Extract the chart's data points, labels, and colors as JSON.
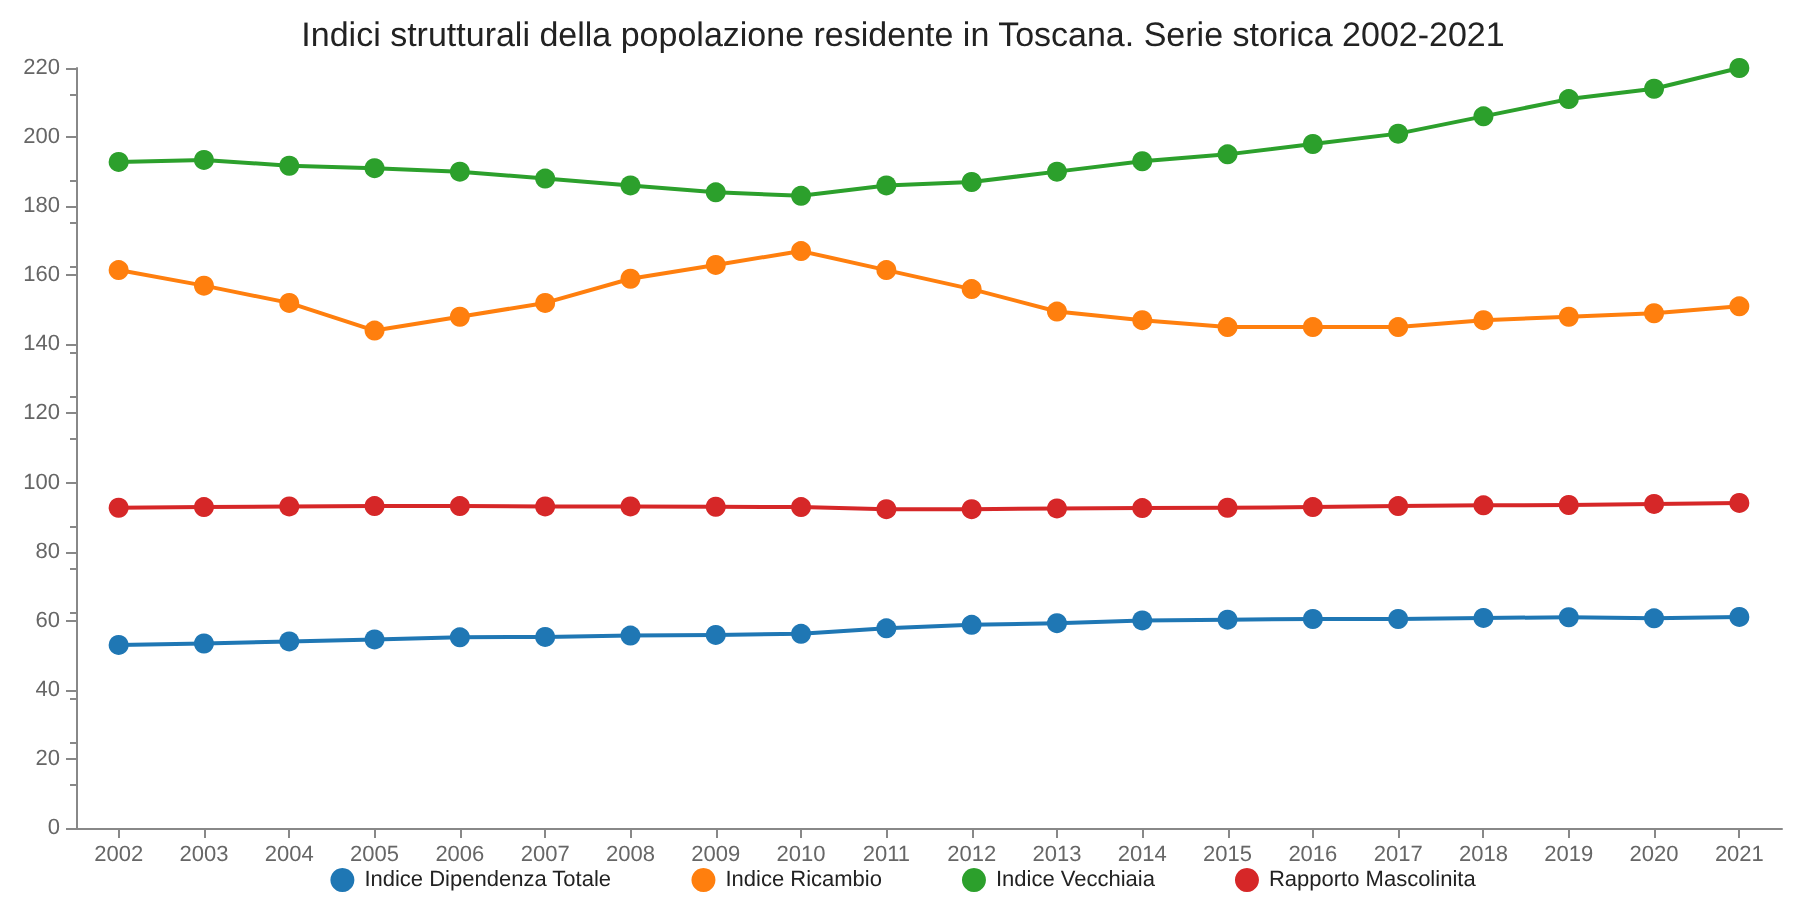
{
  "chart_data": {
    "type": "line",
    "title": "Indici strutturali della popolazione residente in Toscana. Serie storica 2002-2021",
    "categories": [
      "2002",
      "2003",
      "2004",
      "2005",
      "2006",
      "2007",
      "2008",
      "2009",
      "2010",
      "2011",
      "2012",
      "2013",
      "2014",
      "2015",
      "2016",
      "2017",
      "2018",
      "2019",
      "2020",
      "2021"
    ],
    "series": [
      {
        "name": "Indice Dipendenza Totale",
        "color": "#1f77b4",
        "values": [
          53,
          53.4,
          54,
          54.6,
          55.2,
          55.3,
          55.7,
          55.9,
          56.2,
          57.8,
          58.8,
          59.3,
          60.1,
          60.3,
          60.5,
          60.5,
          60.8,
          61,
          60.7,
          61.1
        ]
      },
      {
        "name": "Indice Ricambio",
        "color": "#ff7f0e",
        "values": [
          161.5,
          157,
          152,
          144,
          148,
          152,
          159,
          163,
          167,
          161.5,
          156,
          149.5,
          147,
          145,
          145,
          145,
          147,
          148,
          149,
          151
        ]
      },
      {
        "name": "Indice Vecchiaia",
        "color": "#2ca02c",
        "values": [
          192.8,
          193.4,
          191.7,
          191,
          190,
          188,
          186,
          184,
          183,
          186,
          187,
          190,
          193,
          195,
          198,
          201,
          206,
          211,
          214,
          220
        ]
      },
      {
        "name": "Rapporto Mascolinita",
        "color": "#d62728",
        "values": [
          92.7,
          92.9,
          93.1,
          93.2,
          93.2,
          93.1,
          93.1,
          93,
          92.9,
          92.3,
          92.3,
          92.5,
          92.6,
          92.7,
          92.9,
          93.2,
          93.4,
          93.5,
          93.8,
          94.1
        ]
      }
    ],
    "ylim": [
      0,
      220
    ],
    "yticks": [
      0,
      20,
      40,
      60,
      80,
      100,
      120,
      140,
      160,
      180,
      200,
      220
    ],
    "grid": false,
    "legend": "bottom",
    "marker": "circle",
    "line_style": "solid"
  }
}
